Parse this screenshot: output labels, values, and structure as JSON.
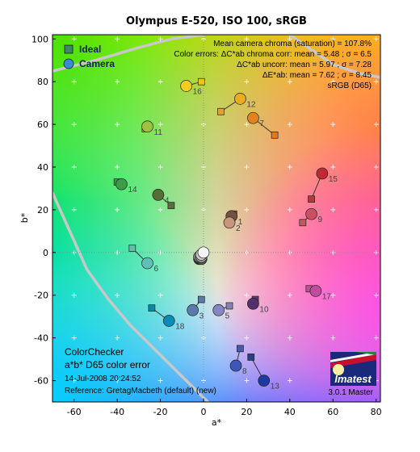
{
  "chart_data": {
    "type": "scatter",
    "title": "Olympus E-520, ISO 100, sRGB",
    "xlabel": "a*",
    "ylabel": "b*",
    "xlim": [
      -70,
      82
    ],
    "ylim": [
      -70,
      102
    ],
    "xticks": [
      -60,
      -40,
      -20,
      0,
      20,
      40,
      60,
      80
    ],
    "yticks": [
      -60,
      -40,
      -20,
      0,
      20,
      40,
      60,
      80,
      100
    ],
    "legend": {
      "position": "top-left",
      "items": [
        {
          "name": "Ideal",
          "marker": "square",
          "color": "#3a8a6a"
        },
        {
          "name": "Camera",
          "marker": "circle",
          "color": "#3a8ad6"
        }
      ]
    },
    "annotations_top_right": [
      "Mean camera chroma (saturation) = 107.8%",
      "Color errors:  ΔC*ab chroma corr:  mean = 5.48 ;  σ = 6.5",
      "ΔC*ab uncorr:  mean = 5.97 ;  σ = 7.28",
      "ΔE*ab:  mean = 7.62 ;  σ = 8.45",
      "sRGB (D65)"
    ],
    "info_bottom_left": {
      "line1": "ColorChecker",
      "line2": "a*b* D65 color error",
      "timestamp": "14-Jul-2008 20:24:52",
      "reference": "Reference: GretagMacbeth (default) (new)"
    },
    "logo": {
      "text": "Imatest",
      "version": "3.0.1  Master"
    },
    "patches": [
      {
        "label": "1",
        "ideal": [
          14,
          18
        ],
        "camera": [
          13,
          17
        ],
        "ideal_color": "#7a5a4a",
        "camera_color": "#74523f"
      },
      {
        "label": "2",
        "ideal": [
          13,
          15
        ],
        "camera": [
          12,
          14
        ],
        "ideal_color": "#c6967e",
        "camera_color": "#c8967c"
      },
      {
        "label": "3",
        "ideal": [
          -1,
          -22
        ],
        "camera": [
          -5,
          -27
        ],
        "ideal_color": "#5e7aa0",
        "camera_color": "#5a7ca8"
      },
      {
        "label": "4",
        "ideal": [
          -15,
          22
        ],
        "camera": [
          -21,
          27
        ],
        "ideal_color": "#5a6c40",
        "camera_color": "#556e38"
      },
      {
        "label": "5",
        "ideal": [
          12,
          -25
        ],
        "camera": [
          7,
          -27
        ],
        "ideal_color": "#8882b4",
        "camera_color": "#8686c0"
      },
      {
        "label": "6",
        "ideal": [
          -33,
          2
        ],
        "camera": [
          -26,
          -5
        ],
        "ideal_color": "#66bcaa",
        "camera_color": "#60c0b8"
      },
      {
        "label": "7",
        "ideal": [
          33,
          55
        ],
        "camera": [
          23,
          63
        ],
        "ideal_color": "#e0782a",
        "camera_color": "#e6821e"
      },
      {
        "label": "8",
        "ideal": [
          17,
          -45
        ],
        "camera": [
          15,
          -53
        ],
        "ideal_color": "#4a5aa6",
        "camera_color": "#3e56b8"
      },
      {
        "label": "9",
        "ideal": [
          46,
          14
        ],
        "camera": [
          50,
          18
        ],
        "ideal_color": "#c25a62",
        "camera_color": "#cc4e62"
      },
      {
        "label": "10",
        "ideal": [
          24,
          -22
        ],
        "camera": [
          23,
          -24
        ],
        "ideal_color": "#5c3c6c",
        "camera_color": "#54306e"
      },
      {
        "label": "11",
        "ideal": [
          -27,
          58
        ],
        "camera": [
          -26,
          59
        ],
        "ideal_color": "#9cbc3c",
        "camera_color": "#9ec240"
      },
      {
        "label": "12",
        "ideal": [
          8,
          66
        ],
        "camera": [
          17,
          72
        ],
        "ideal_color": "#e0a42e",
        "camera_color": "#ecaa20"
      },
      {
        "label": "13",
        "ideal": [
          22,
          -49
        ],
        "camera": [
          28,
          -60
        ],
        "ideal_color": "#2a3c8e",
        "camera_color": "#1c3aa0"
      },
      {
        "label": "14",
        "ideal": [
          -40,
          33
        ],
        "camera": [
          -38,
          32
        ],
        "ideal_color": "#46944a",
        "camera_color": "#3c9c48"
      },
      {
        "label": "15",
        "ideal": [
          50,
          25
        ],
        "camera": [
          55,
          37
        ],
        "ideal_color": "#b03a3c",
        "camera_color": "#c02a34"
      },
      {
        "label": "16",
        "ideal": [
          -1,
          80
        ],
        "camera": [
          -8,
          78
        ],
        "ideal_color": "#ecc41a",
        "camera_color": "#f2cc20"
      },
      {
        "label": "17",
        "ideal": [
          49,
          -17
        ],
        "camera": [
          52,
          -18
        ],
        "ideal_color": "#bc5494",
        "camera_color": "#c24c9c"
      },
      {
        "label": "18",
        "ideal": [
          -24,
          -26
        ],
        "camera": [
          -16,
          -32
        ],
        "ideal_color": "#0888a4",
        "camera_color": "#0a8cba"
      }
    ],
    "neutrals": [
      {
        "camera": [
          0,
          0
        ],
        "color": "#f4f4f4"
      },
      {
        "camera": [
          -1,
          -1
        ],
        "color": "#c8c8c8"
      },
      {
        "camera": [
          -1,
          -2
        ],
        "color": "#a0a0a0"
      },
      {
        "camera": [
          -2,
          -2
        ],
        "color": "#7a7a7a"
      },
      {
        "camera": [
          -1,
          -3
        ],
        "color": "#555555"
      },
      {
        "camera": [
          -2,
          -3
        ],
        "color": "#343434"
      }
    ]
  }
}
